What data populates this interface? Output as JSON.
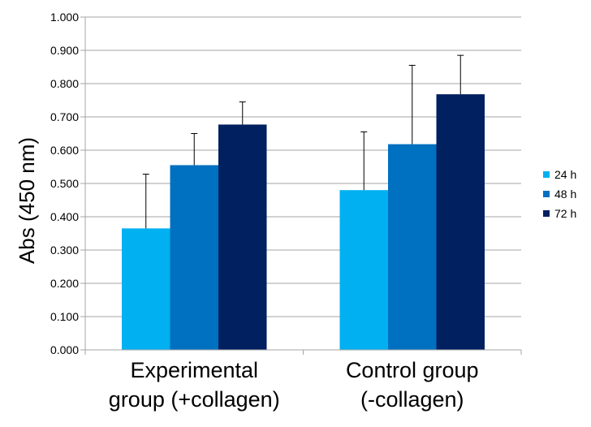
{
  "chart_data": {
    "type": "bar",
    "ylabel": "Abs (450 nm)",
    "ylim": [
      0,
      1.0
    ],
    "yticks": [
      "0.000",
      "0.100",
      "0.200",
      "0.300",
      "0.400",
      "0.500",
      "0.600",
      "0.700",
      "0.800",
      "0.900",
      "1.000"
    ],
    "categories": [
      [
        "Experimental",
        "group (+collagen)"
      ],
      [
        "Control group",
        "(-collagen)"
      ]
    ],
    "series": [
      {
        "name": "24 h",
        "color": "#00b0f0",
        "values": [
          0.365,
          0.48
        ],
        "errors": [
          0.163,
          0.175
        ]
      },
      {
        "name": "48 h",
        "color": "#0070c0",
        "values": [
          0.555,
          0.618
        ],
        "errors": [
          0.095,
          0.237
        ]
      },
      {
        "name": "72 h",
        "color": "#002060",
        "values": [
          0.677,
          0.768
        ],
        "errors": [
          0.068,
          0.117
        ]
      }
    ],
    "grid": true,
    "legend": "right"
  }
}
